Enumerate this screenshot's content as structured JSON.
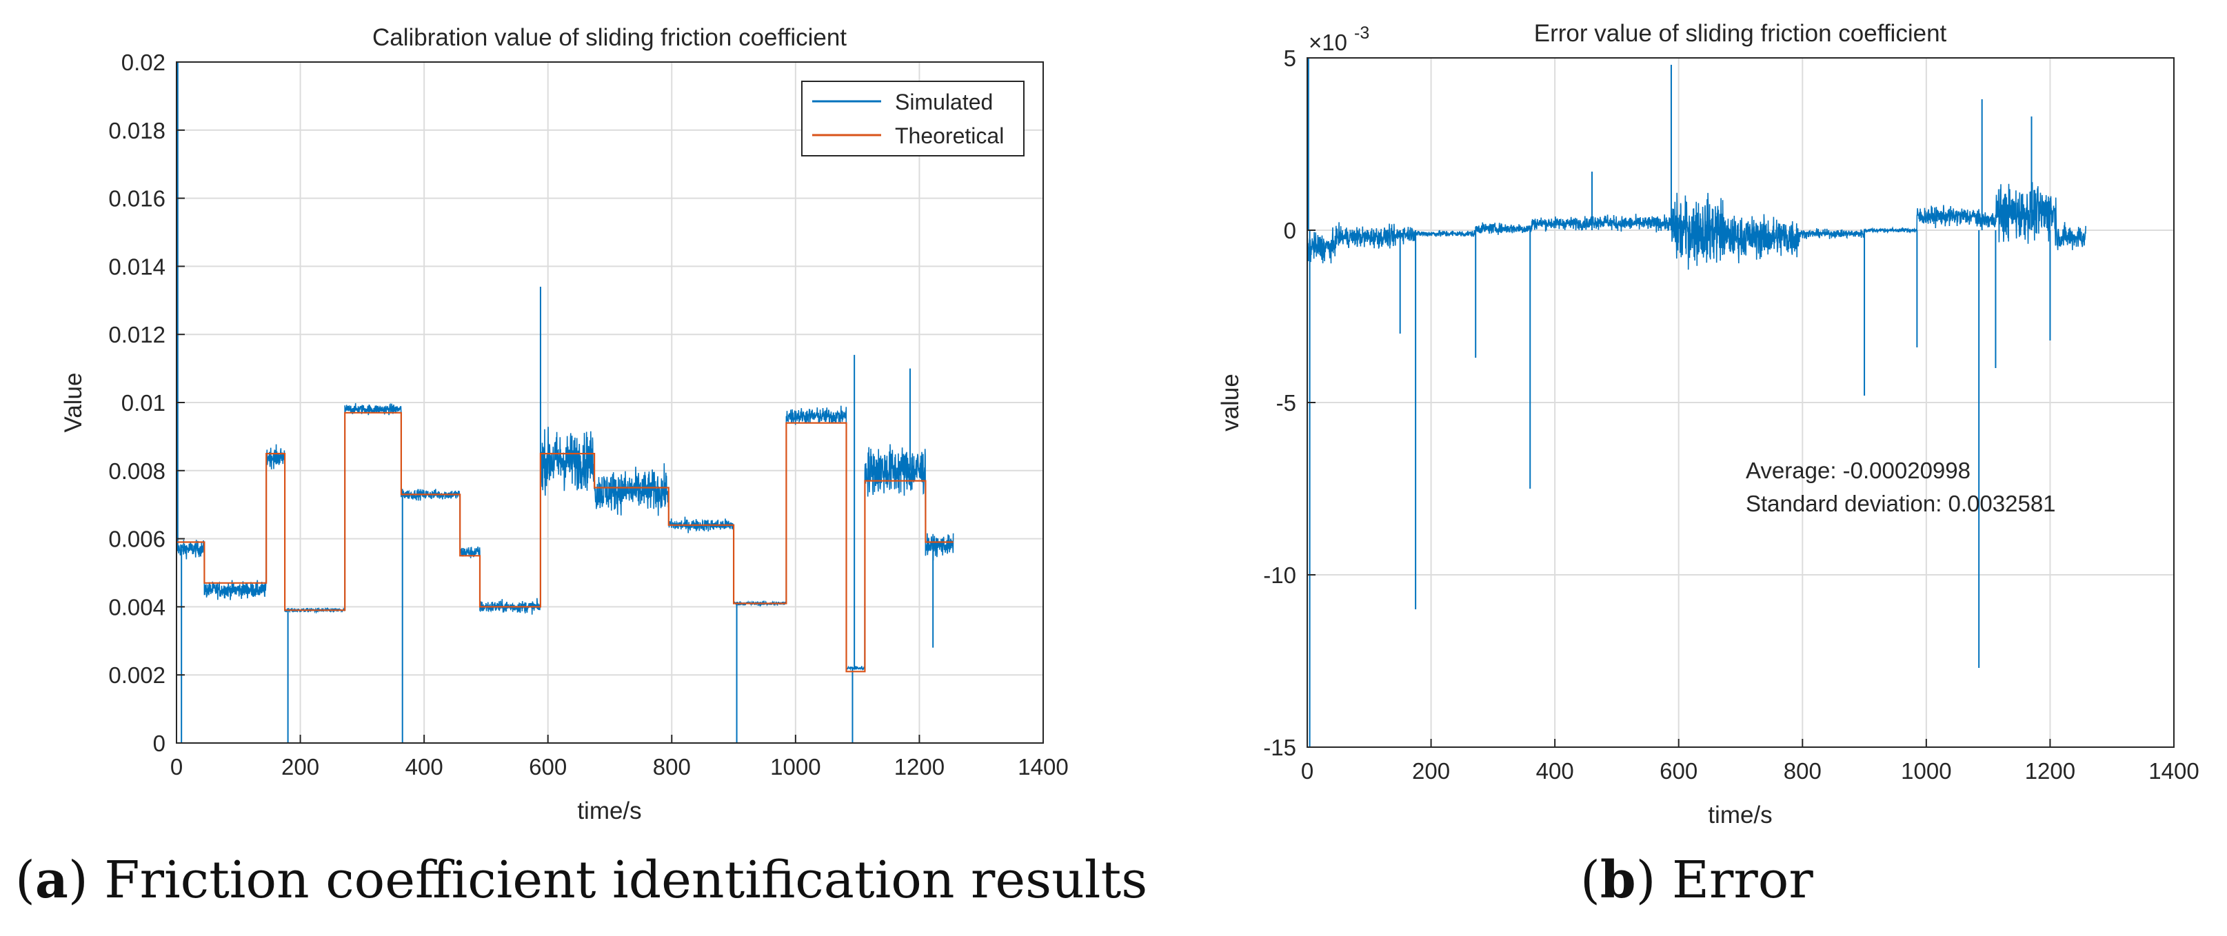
{
  "colors": {
    "simulated": "#0072BD",
    "theoretical": "#D95319",
    "grid": "#dcdcdc",
    "axis": "#262626"
  },
  "chart_data": [
    {
      "type": "line",
      "panel": "a",
      "title": "Calibration value of sliding friction coefficient",
      "xlabel": "time/s",
      "ylabel": "Value",
      "xlim": [
        0,
        1400
      ],
      "ylim": [
        0,
        0.02
      ],
      "xticks": [
        0,
        200,
        400,
        600,
        800,
        1000,
        1200,
        1400
      ],
      "xtick_labels": [
        "0",
        "200",
        "400",
        "600",
        "800",
        "1000",
        "1200",
        "1400"
      ],
      "yticks": [
        0,
        0.002,
        0.004,
        0.006,
        0.008,
        0.01,
        0.012,
        0.014,
        0.016,
        0.018,
        0.02
      ],
      "ytick_labels": [
        "0",
        "0.002",
        "0.004",
        "0.006",
        "0.008",
        "0.01",
        "0.012",
        "0.014",
        "0.016",
        "0.018",
        "0.02"
      ],
      "grid": true,
      "legend": {
        "position": "top-right",
        "entries": [
          "Simulated",
          "Theoretical"
        ]
      },
      "series": [
        {
          "name": "Theoretical",
          "kind": "step",
          "segments": [
            {
              "x0": 0,
              "x1": 45,
              "y": 0.0059
            },
            {
              "x0": 45,
              "x1": 145,
              "y": 0.0047
            },
            {
              "x0": 145,
              "x1": 175,
              "y": 0.0085
            },
            {
              "x0": 175,
              "x1": 272,
              "y": 0.0039
            },
            {
              "x0": 272,
              "x1": 363,
              "y": 0.0097
            },
            {
              "x0": 363,
              "x1": 458,
              "y": 0.0073
            },
            {
              "x0": 458,
              "x1": 490,
              "y": 0.0055
            },
            {
              "x0": 490,
              "x1": 588,
              "y": 0.004
            },
            {
              "x0": 588,
              "x1": 675,
              "y": 0.0085
            },
            {
              "x0": 675,
              "x1": 795,
              "y": 0.0075
            },
            {
              "x0": 795,
              "x1": 900,
              "y": 0.0064
            },
            {
              "x0": 900,
              "x1": 985,
              "y": 0.0041
            },
            {
              "x0": 985,
              "x1": 1082,
              "y": 0.0094
            },
            {
              "x0": 1082,
              "x1": 1112,
              "y": 0.0021
            },
            {
              "x0": 1112,
              "x1": 1210,
              "y": 0.0077
            },
            {
              "x0": 1210,
              "x1": 1255,
              "y": 0.0059
            }
          ]
        },
        {
          "name": "Simulated",
          "kind": "noisy",
          "segments": [
            {
              "x0": 0,
              "x1": 45,
              "y": 0.0057,
              "noise": 0.0004
            },
            {
              "x0": 45,
              "x1": 145,
              "y": 0.0045,
              "noise": 0.0004
            },
            {
              "x0": 145,
              "x1": 175,
              "y": 0.0084,
              "noise": 0.0005
            },
            {
              "x0": 175,
              "x1": 272,
              "y": 0.0039,
              "noise": 0.0001
            },
            {
              "x0": 272,
              "x1": 363,
              "y": 0.0098,
              "noise": 0.00025
            },
            {
              "x0": 363,
              "x1": 458,
              "y": 0.0073,
              "noise": 0.00025
            },
            {
              "x0": 458,
              "x1": 490,
              "y": 0.0056,
              "noise": 0.0003
            },
            {
              "x0": 490,
              "x1": 588,
              "y": 0.004,
              "noise": 0.0003
            },
            {
              "x0": 588,
              "x1": 675,
              "y": 0.0083,
              "noise": 0.0014
            },
            {
              "x0": 675,
              "x1": 795,
              "y": 0.0074,
              "noise": 0.001
            },
            {
              "x0": 795,
              "x1": 900,
              "y": 0.0064,
              "noise": 0.0003
            },
            {
              "x0": 900,
              "x1": 985,
              "y": 0.0041,
              "noise": 0.0001
            },
            {
              "x0": 985,
              "x1": 1082,
              "y": 0.0096,
              "noise": 0.0004
            },
            {
              "x0": 1082,
              "x1": 1112,
              "y": 0.0022,
              "noise": 0.0001
            },
            {
              "x0": 1112,
              "x1": 1210,
              "y": 0.008,
              "noise": 0.0012
            },
            {
              "x0": 1210,
              "x1": 1255,
              "y": 0.0058,
              "noise": 0.0005
            }
          ],
          "spikes": [
            {
              "x": 2,
              "y": 0.02
            },
            {
              "x": 8,
              "y": 0
            },
            {
              "x": 180,
              "y": 0
            },
            {
              "x": 365,
              "y": 0
            },
            {
              "x": 588,
              "y": 0.0134
            },
            {
              "x": 905,
              "y": 0
            },
            {
              "x": 1092,
              "y": 0
            },
            {
              "x": 1095,
              "y": 0.0114
            },
            {
              "x": 1185,
              "y": 0.011
            },
            {
              "x": 1222,
              "y": 0.0028
            }
          ]
        }
      ]
    },
    {
      "type": "line",
      "panel": "b",
      "title": "Error value of sliding friction coefficient",
      "xlabel": "time/s",
      "ylabel": "value",
      "exponent_label": "×10",
      "exponent_power": "-3",
      "xlim": [
        0,
        1400
      ],
      "ylim": [
        -15,
        5
      ],
      "y_scale": 0.001,
      "xticks": [
        0,
        200,
        400,
        600,
        800,
        1000,
        1200,
        1400
      ],
      "xtick_labels": [
        "0",
        "200",
        "400",
        "600",
        "800",
        "1000",
        "1200",
        "1400"
      ],
      "yticks": [
        -15,
        -10,
        -5,
        0,
        5
      ],
      "ytick_labels": [
        "-15",
        "-10",
        "-5",
        "0",
        "5"
      ],
      "grid": true,
      "annotations": [
        "Average: -0.00020998",
        "Standard deviation: 0.0032581"
      ],
      "series": [
        {
          "name": "Error",
          "envelope": [
            {
              "x0": 0,
              "x1": 45,
              "mean": -0.5,
              "noise": 0.7
            },
            {
              "x0": 45,
              "x1": 145,
              "mean": -0.2,
              "noise": 0.5
            },
            {
              "x0": 145,
              "x1": 175,
              "mean": -0.1,
              "noise": 0.4
            },
            {
              "x0": 175,
              "x1": 272,
              "mean": -0.1,
              "noise": 0.15
            },
            {
              "x0": 272,
              "x1": 363,
              "mean": 0.05,
              "noise": 0.25
            },
            {
              "x0": 363,
              "x1": 458,
              "mean": 0.2,
              "noise": 0.3
            },
            {
              "x0": 458,
              "x1": 490,
              "mean": 0.25,
              "noise": 0.35
            },
            {
              "x0": 490,
              "x1": 588,
              "mean": 0.2,
              "noise": 0.35
            },
            {
              "x0": 588,
              "x1": 675,
              "mean": 0.0,
              "noise": 1.6
            },
            {
              "x0": 675,
              "x1": 795,
              "mean": -0.2,
              "noise": 1.0
            },
            {
              "x0": 795,
              "x1": 900,
              "mean": -0.1,
              "noise": 0.2
            },
            {
              "x0": 900,
              "x1": 985,
              "mean": 0.0,
              "noise": 0.1
            },
            {
              "x0": 985,
              "x1": 1082,
              "mean": 0.4,
              "noise": 0.45
            },
            {
              "x0": 1082,
              "x1": 1112,
              "mean": 0.3,
              "noise": 0.4
            },
            {
              "x0": 1112,
              "x1": 1210,
              "mean": 0.5,
              "noise": 1.3
            },
            {
              "x0": 1210,
              "x1": 1258,
              "mean": -0.2,
              "noise": 0.6
            }
          ],
          "spikes": [
            {
              "x": 2,
              "y": 5
            },
            {
              "x": 4,
              "y": -15
            },
            {
              "x": 150,
              "y": -3
            },
            {
              "x": 175,
              "y": -11
            },
            {
              "x": 272,
              "y": -3.7
            },
            {
              "x": 360,
              "y": -7.5
            },
            {
              "x": 460,
              "y": 1.7
            },
            {
              "x": 588,
              "y": 4.8
            },
            {
              "x": 900,
              "y": -4.8
            },
            {
              "x": 985,
              "y": -3.4
            },
            {
              "x": 1085,
              "y": -12.7
            },
            {
              "x": 1090,
              "y": 3.8
            },
            {
              "x": 1112,
              "y": -4.0
            },
            {
              "x": 1170,
              "y": 3.3
            },
            {
              "x": 1200,
              "y": -3.2
            }
          ]
        }
      ]
    }
  ],
  "captions": [
    {
      "label": "a",
      "text": "Friction coefficient identification results"
    },
    {
      "label": "b",
      "text": "Error"
    }
  ]
}
